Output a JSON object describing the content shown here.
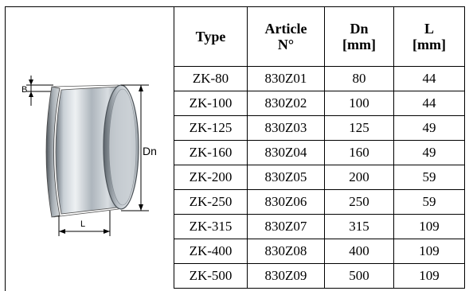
{
  "diagram": {
    "label_b": "B",
    "label_dn": "Dn",
    "label_l": "L"
  },
  "table": {
    "headers": {
      "type": "Type",
      "article_line1": "Article",
      "article_line2": "N°",
      "dn_line1": "Dn",
      "dn_line2": "[mm]",
      "l_line1": "L",
      "l_line2": "[mm]"
    },
    "rows": [
      {
        "type": "ZK-80",
        "article": "830Z01",
        "dn": "80",
        "l": "44"
      },
      {
        "type": "ZK-100",
        "article": "830Z02",
        "dn": "100",
        "l": "44"
      },
      {
        "type": "ZK-125",
        "article": "830Z03",
        "dn": "125",
        "l": "49"
      },
      {
        "type": "ZK-160",
        "article": "830Z04",
        "dn": "160",
        "l": "49"
      },
      {
        "type": "ZK-200",
        "article": "830Z05",
        "dn": "200",
        "l": "59"
      },
      {
        "type": "ZK-250",
        "article": "830Z06",
        "dn": "250",
        "l": "59"
      },
      {
        "type": "ZK-315",
        "article": "830Z07",
        "dn": "315",
        "l": "109"
      },
      {
        "type": "ZK-400",
        "article": "830Z08",
        "dn": "400",
        "l": "109"
      },
      {
        "type": "ZK-500",
        "article": "830Z09",
        "dn": "500",
        "l": "109"
      }
    ]
  }
}
